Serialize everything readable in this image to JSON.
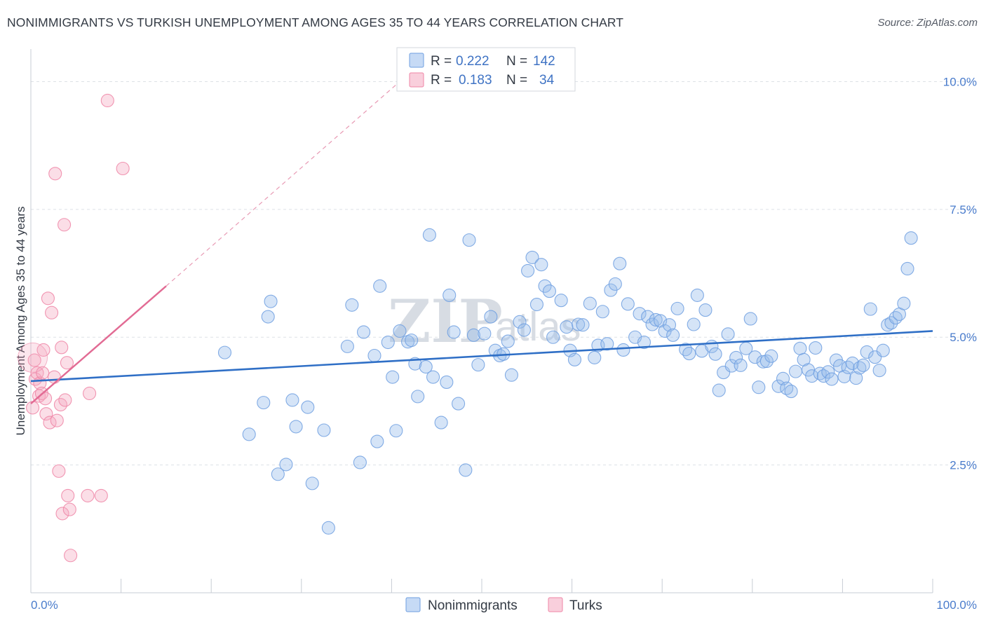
{
  "header": {
    "title": "NONIMMIGRANTS VS TURKISH UNEMPLOYMENT AMONG AGES 35 TO 44 YEARS CORRELATION CHART",
    "source": "Source: ZipAtlas.com"
  },
  "watermark": {
    "zip": "ZIP",
    "atlas": "atlas"
  },
  "legend": {
    "rows": [
      {
        "r_label": "R =",
        "r_value": "0.222",
        "n_label": "N =",
        "n_value": "142",
        "color": "#6f9fe0"
      },
      {
        "r_label": "R =",
        "r_value": "0.183",
        "n_label": "N =",
        "n_value": "34",
        "color": "#ef85a6"
      }
    ]
  },
  "bottom_legend": [
    {
      "label": "Nonimmigrants",
      "color": "#6f9fe0"
    },
    {
      "label": "Turks",
      "color": "#ef85a6"
    }
  ],
  "chart_data": {
    "type": "scatter",
    "title": "NONIMMIGRANTS VS TURKISH UNEMPLOYMENT AMONG AGES 35 TO 44 YEARS CORRELATION CHART",
    "xlabel": "",
    "ylabel": "Unemployment Among Ages 35 to 44 years",
    "xlim": [
      0,
      100
    ],
    "ylim": [
      0,
      10.5
    ],
    "x_tick_labels": [
      "0.0%",
      "100.0%"
    ],
    "y_ticks": [
      {
        "value": 2.5,
        "label": "2.5%"
      },
      {
        "value": 5.0,
        "label": "5.0%"
      },
      {
        "value": 7.5,
        "label": "7.5%"
      },
      {
        "value": 10.0,
        "label": "10.0%"
      }
    ],
    "grid": "horizontal-dashed",
    "legend_position": "top-center",
    "series": [
      {
        "name": "Nonimmigrants",
        "color": "#6f9fe0",
        "trend": {
          "x": [
            0,
            100
          ],
          "y": [
            4.14,
            5.12
          ]
        },
        "points": [
          [
            21.5,
            4.7
          ],
          [
            24.2,
            3.1
          ],
          [
            25.8,
            3.72
          ],
          [
            26.3,
            5.4
          ],
          [
            26.6,
            5.7
          ],
          [
            27.4,
            2.32
          ],
          [
            28.3,
            2.51
          ],
          [
            29.0,
            3.77
          ],
          [
            29.4,
            3.25
          ],
          [
            30.7,
            3.63
          ],
          [
            31.2,
            2.14
          ],
          [
            32.5,
            3.18
          ],
          [
            33.0,
            1.27
          ],
          [
            35.1,
            4.82
          ],
          [
            35.6,
            5.63
          ],
          [
            36.5,
            2.55
          ],
          [
            36.9,
            5.1
          ],
          [
            38.1,
            4.64
          ],
          [
            38.4,
            2.96
          ],
          [
            38.7,
            6.0
          ],
          [
            39.6,
            4.9
          ],
          [
            40.1,
            4.22
          ],
          [
            40.5,
            3.17
          ],
          [
            40.9,
            5.12
          ],
          [
            41.8,
            4.91
          ],
          [
            42.2,
            4.94
          ],
          [
            42.6,
            4.48
          ],
          [
            42.9,
            3.84
          ],
          [
            43.8,
            4.42
          ],
          [
            44.2,
            7.0
          ],
          [
            44.6,
            4.22
          ],
          [
            45.5,
            3.33
          ],
          [
            46.1,
            4.12
          ],
          [
            46.4,
            5.82
          ],
          [
            46.9,
            5.1
          ],
          [
            47.4,
            3.7
          ],
          [
            48.2,
            2.4
          ],
          [
            48.6,
            6.9
          ],
          [
            49.1,
            5.04
          ],
          [
            49.6,
            4.46
          ],
          [
            50.3,
            5.07
          ],
          [
            51.0,
            5.4
          ],
          [
            51.5,
            4.74
          ],
          [
            52.0,
            4.64
          ],
          [
            52.4,
            4.67
          ],
          [
            52.9,
            4.92
          ],
          [
            53.3,
            4.26
          ],
          [
            54.2,
            5.3
          ],
          [
            54.7,
            5.14
          ],
          [
            55.1,
            6.3
          ],
          [
            55.6,
            6.56
          ],
          [
            56.1,
            5.64
          ],
          [
            56.6,
            6.42
          ],
          [
            57.0,
            6.0
          ],
          [
            57.5,
            5.9
          ],
          [
            57.9,
            5.0
          ],
          [
            58.8,
            5.72
          ],
          [
            59.4,
            5.2
          ],
          [
            59.8,
            4.74
          ],
          [
            60.3,
            4.56
          ],
          [
            60.7,
            5.25
          ],
          [
            61.2,
            5.24
          ],
          [
            62.0,
            5.66
          ],
          [
            62.5,
            4.6
          ],
          [
            62.9,
            4.84
          ],
          [
            63.4,
            5.5
          ],
          [
            63.9,
            4.87
          ],
          [
            64.3,
            5.92
          ],
          [
            64.8,
            6.04
          ],
          [
            65.3,
            6.44
          ],
          [
            65.7,
            4.75
          ],
          [
            66.2,
            5.65
          ],
          [
            67.0,
            5.0
          ],
          [
            67.5,
            5.46
          ],
          [
            68.0,
            4.9
          ],
          [
            68.4,
            5.4
          ],
          [
            68.9,
            5.25
          ],
          [
            69.3,
            5.34
          ],
          [
            69.8,
            5.32
          ],
          [
            70.3,
            5.12
          ],
          [
            70.8,
            5.24
          ],
          [
            71.2,
            5.04
          ],
          [
            71.7,
            5.56
          ],
          [
            72.6,
            4.76
          ],
          [
            73.0,
            4.68
          ],
          [
            73.5,
            5.25
          ],
          [
            73.9,
            5.82
          ],
          [
            74.4,
            4.73
          ],
          [
            74.8,
            5.53
          ],
          [
            75.5,
            4.82
          ],
          [
            75.9,
            4.67
          ],
          [
            76.3,
            3.96
          ],
          [
            76.8,
            4.31
          ],
          [
            77.3,
            5.06
          ],
          [
            77.7,
            4.44
          ],
          [
            78.2,
            4.6
          ],
          [
            78.7,
            4.45
          ],
          [
            79.3,
            4.78
          ],
          [
            79.8,
            5.36
          ],
          [
            80.3,
            4.61
          ],
          [
            80.7,
            4.02
          ],
          [
            81.2,
            4.52
          ],
          [
            81.6,
            4.53
          ],
          [
            82.1,
            4.63
          ],
          [
            82.9,
            4.04
          ],
          [
            83.4,
            4.19
          ],
          [
            83.8,
            4.0
          ],
          [
            84.3,
            3.94
          ],
          [
            84.8,
            4.33
          ],
          [
            85.3,
            4.78
          ],
          [
            85.7,
            4.56
          ],
          [
            86.2,
            4.36
          ],
          [
            86.6,
            4.24
          ],
          [
            87.0,
            4.79
          ],
          [
            87.5,
            4.29
          ],
          [
            87.9,
            4.24
          ],
          [
            88.4,
            4.32
          ],
          [
            88.8,
            4.18
          ],
          [
            89.3,
            4.55
          ],
          [
            89.7,
            4.44
          ],
          [
            90.2,
            4.23
          ],
          [
            90.6,
            4.41
          ],
          [
            91.1,
            4.49
          ],
          [
            91.5,
            4.2
          ],
          [
            91.9,
            4.4
          ],
          [
            92.3,
            4.45
          ],
          [
            92.7,
            4.71
          ],
          [
            93.1,
            5.55
          ],
          [
            93.6,
            4.61
          ],
          [
            94.1,
            4.35
          ],
          [
            94.5,
            4.74
          ],
          [
            95.0,
            5.24
          ],
          [
            95.4,
            5.28
          ],
          [
            95.9,
            5.38
          ],
          [
            96.3,
            5.45
          ],
          [
            96.8,
            5.66
          ],
          [
            97.2,
            6.34
          ],
          [
            97.6,
            6.94
          ]
        ]
      },
      {
        "name": "Turks",
        "color": "#ef85a6",
        "trend": {
          "x": [
            0,
            15
          ],
          "y": [
            3.7,
            6.0
          ],
          "extrapolated_to": [
            40.9,
            10.0
          ]
        },
        "points": [
          [
            0.2,
            3.62
          ],
          [
            0.4,
            4.55
          ],
          [
            0.5,
            4.18
          ],
          [
            0.7,
            4.3
          ],
          [
            0.9,
            3.85
          ],
          [
            1.0,
            4.1
          ],
          [
            1.2,
            3.9
          ],
          [
            1.3,
            4.3
          ],
          [
            1.4,
            4.75
          ],
          [
            1.6,
            3.8
          ],
          [
            1.7,
            3.5
          ],
          [
            1.9,
            5.76
          ],
          [
            2.1,
            3.33
          ],
          [
            2.3,
            5.48
          ],
          [
            2.6,
            4.22
          ],
          [
            2.7,
            8.2
          ],
          [
            2.9,
            3.37
          ],
          [
            3.1,
            2.38
          ],
          [
            3.3,
            3.68
          ],
          [
            3.4,
            4.8
          ],
          [
            3.5,
            1.55
          ],
          [
            3.7,
            7.2
          ],
          [
            3.8,
            3.77
          ],
          [
            4.0,
            4.5
          ],
          [
            4.1,
            1.9
          ],
          [
            4.3,
            1.63
          ],
          [
            4.4,
            0.73
          ],
          [
            6.3,
            1.9
          ],
          [
            6.5,
            3.9
          ],
          [
            7.8,
            1.9
          ],
          [
            8.5,
            9.63
          ],
          [
            10.2,
            8.3
          ]
        ]
      }
    ]
  }
}
